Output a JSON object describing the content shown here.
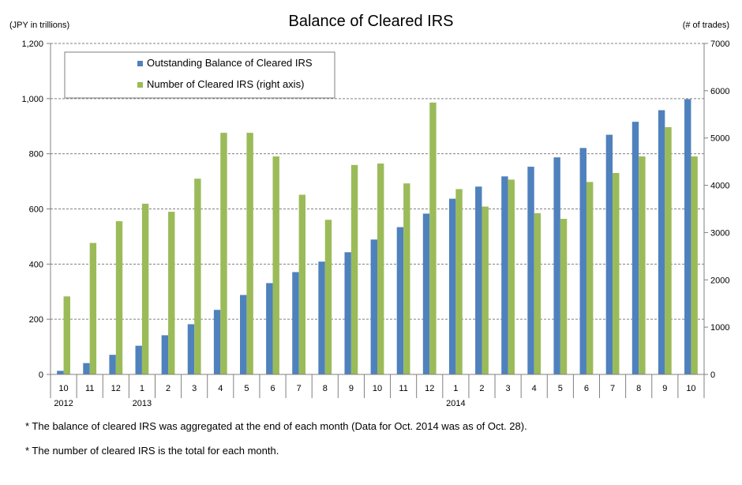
{
  "chart_data": {
    "type": "bar",
    "title": "Balance of Cleared IRS",
    "y_left_unit": "(JPY in trillions)",
    "y_right_unit": "(# of trades)",
    "ylim_left": [
      0,
      1200
    ],
    "ylim_right": [
      0,
      7000
    ],
    "y_left_ticks": [
      "0",
      "200",
      "400",
      "600",
      "800",
      "1,000",
      "1,200"
    ],
    "y_right_ticks": [
      "0",
      "1000",
      "2000",
      "3000",
      "4000",
      "5000",
      "6000",
      "7000"
    ],
    "categories": [
      "10",
      "11",
      "12",
      "1",
      "2",
      "3",
      "4",
      "5",
      "6",
      "7",
      "8",
      "9",
      "10",
      "11",
      "12",
      "1",
      "2",
      "3",
      "4",
      "5",
      "6",
      "7",
      "8",
      "9",
      "10"
    ],
    "year_labels": [
      {
        "category_index": 0,
        "label": "2012"
      },
      {
        "category_index": 3,
        "label": "2013"
      },
      {
        "category_index": 15,
        "label": "2014"
      }
    ],
    "series": [
      {
        "name": "Outstanding Balance of Cleared IRS",
        "axis": "left",
        "color": "#4F81BD",
        "values": [
          13,
          41,
          71,
          104,
          142,
          182,
          234,
          288,
          331,
          371,
          409,
          443,
          489,
          534,
          583,
          637,
          681,
          718,
          753,
          787,
          821,
          869,
          916,
          958,
          998
        ]
      },
      {
        "name": "Number of Cleared IRS (right axis)",
        "axis": "right",
        "color": "#9BBB59",
        "values": [
          1650,
          2780,
          3240,
          3610,
          3440,
          4140,
          5110,
          5110,
          4610,
          3800,
          3270,
          4430,
          4460,
          4040,
          5750,
          3920,
          3550,
          4120,
          3410,
          3290,
          4070,
          4260,
          4610,
          5230,
          4610
        ]
      }
    ],
    "grid": true,
    "legend_position": "top-left"
  },
  "notes": [
    "* The balance of cleared IRS was aggregated at the end of each month (Data for Oct. 2014 was as of Oct. 28).",
    "* The number of cleared IRS is the total for each month."
  ]
}
